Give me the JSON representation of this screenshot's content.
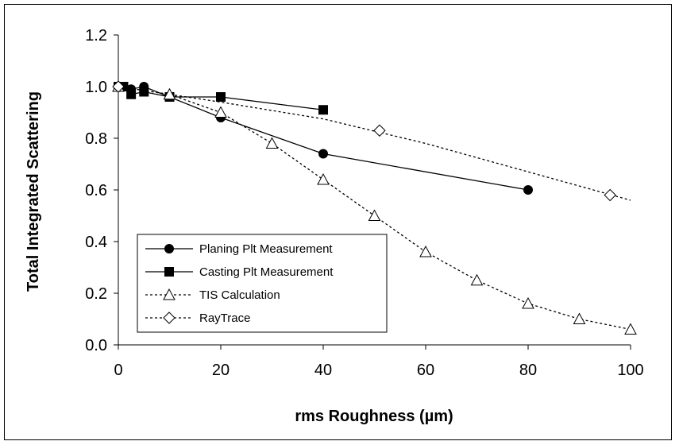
{
  "chart_data": {
    "type": "line",
    "xlabel": "rms Roughness  (µm)",
    "ylabel": "Total Integrated Scattering",
    "xlim": [
      0,
      100
    ],
    "ylim": [
      0,
      1.2
    ],
    "xticks": [
      0,
      20,
      40,
      60,
      80,
      100
    ],
    "yticks": [
      0.0,
      0.2,
      0.4,
      0.6,
      0.8,
      1.0,
      1.2
    ],
    "xtick_labels": [
      "0",
      "20",
      "40",
      "60",
      "80",
      "100"
    ],
    "ytick_labels": [
      "0.0",
      "0.2",
      "0.4",
      "0.6",
      "0.8",
      "1.0",
      "1.2"
    ],
    "grid": false,
    "legend_position": "bottom-left",
    "series": [
      {
        "name": "Planing Plt Measurement",
        "marker": "circle-filled",
        "line": "solid",
        "color": "#000000",
        "x": [
          0,
          1,
          2.5,
          5,
          10,
          20,
          40,
          80
        ],
        "y": [
          1.0,
          1.0,
          0.99,
          1.0,
          0.96,
          0.88,
          0.74,
          0.6
        ]
      },
      {
        "name": "Casting Plt Measurement",
        "marker": "square-filled",
        "line": "solid",
        "color": "#000000",
        "x": [
          0,
          1,
          2.5,
          5,
          10,
          20,
          40
        ],
        "y": [
          1.0,
          1.0,
          0.97,
          0.98,
          0.96,
          0.96,
          0.91
        ]
      },
      {
        "name": "TIS Calculation",
        "marker": "triangle-open",
        "line": "dotted",
        "color": "#000000",
        "x": [
          0,
          10,
          20,
          30,
          40,
          50,
          60,
          70,
          80,
          90,
          100
        ],
        "y": [
          1.0,
          0.97,
          0.9,
          0.78,
          0.64,
          0.5,
          0.36,
          0.25,
          0.16,
          0.1,
          0.06
        ]
      },
      {
        "name": "RayTrace",
        "marker": "diamond-open",
        "line": "dotted",
        "color": "#000000",
        "x": [
          0,
          51,
          96
        ],
        "y": [
          1.0,
          0.83,
          0.58
        ],
        "trend_x": [
          0,
          20,
          40,
          60,
          80,
          100
        ],
        "trend_y": [
          1.0,
          0.94,
          0.875,
          0.78,
          0.67,
          0.56
        ]
      }
    ]
  }
}
